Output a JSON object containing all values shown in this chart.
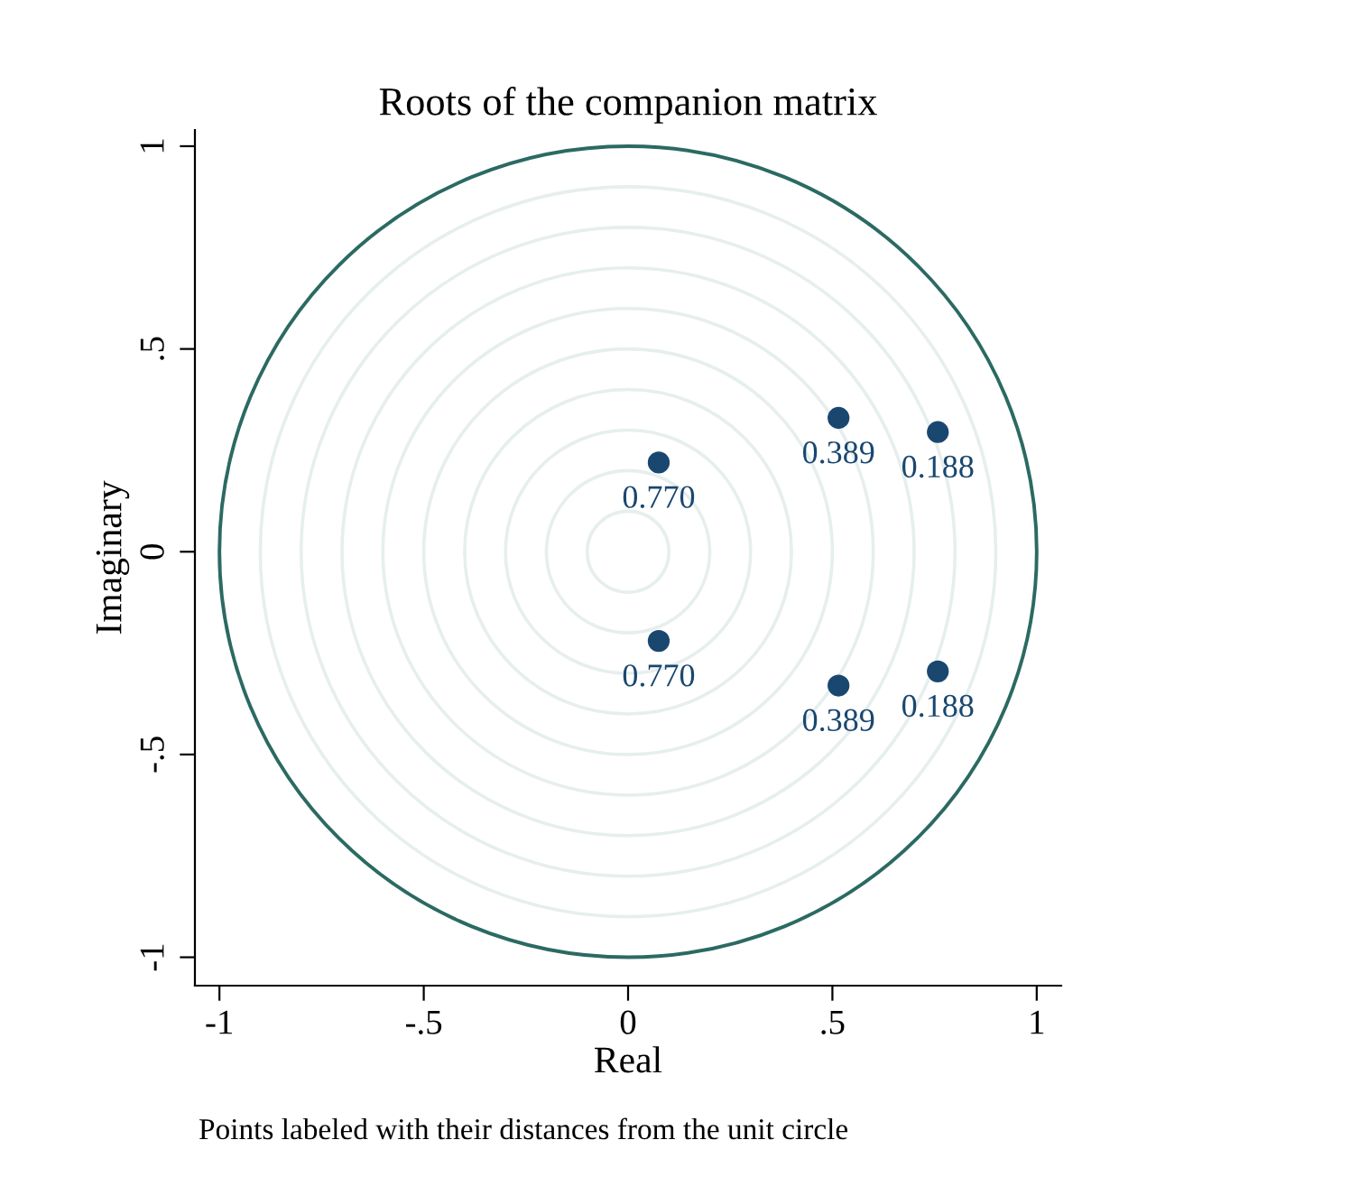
{
  "chart_data": {
    "type": "scatter",
    "title": "Roots of the companion matrix",
    "xlabel": "Real",
    "ylabel": "Imaginary",
    "annotations": [
      "Points labeled with their distances from the unit circle",
      {
        "text": "0.770",
        "x": 0.075,
        "y": 0.22
      },
      {
        "text": "0.770",
        "x": 0.075,
        "y": -0.22
      },
      {
        "text": "0.389",
        "x": 0.515,
        "y": 0.33
      },
      {
        "text": "0.389",
        "x": 0.515,
        "y": -0.33
      },
      {
        "text": "0.188",
        "x": 0.758,
        "y": 0.295
      },
      {
        "text": "0.188",
        "x": 0.758,
        "y": -0.295
      }
    ],
    "xlim": [
      -1.06,
      1.06
    ],
    "ylim": [
      -1.07,
      1.04
    ],
    "xticks": [
      -1,
      {
        "value": -0.5,
        "label": "-.5"
      },
      0,
      {
        "value": 0.5,
        "label": ".5"
      },
      1
    ],
    "yticks": [
      -1,
      {
        "value": -0.5,
        "label": "-.5"
      },
      0,
      {
        "value": 0.5,
        "label": ".5"
      },
      1
    ],
    "marker": "circle",
    "series": [
      {
        "color": "#1a476f",
        "x": [
          0.075,
          0.075,
          0.515,
          0.515,
          0.758,
          0.758
        ],
        "values": [
          0.22,
          -0.22,
          0.33,
          -0.33,
          0.295,
          -0.295
        ]
      }
    ]
  }
}
